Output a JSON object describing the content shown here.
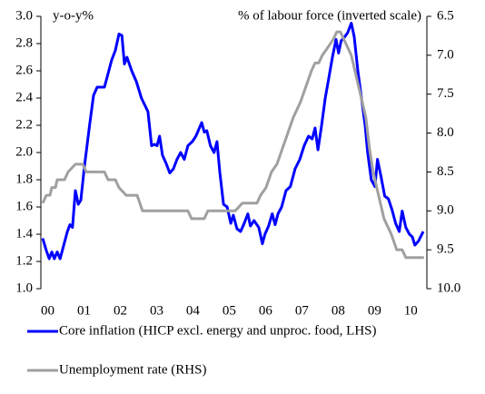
{
  "chart_data": {
    "type": "line",
    "y_axis_label": "y-o-y%",
    "y2_axis_label": "% of labour force (inverted scale)",
    "xlim": [
      2000,
      2010.58
    ],
    "xticks": [
      {
        "value": 2000,
        "label": "00"
      },
      {
        "value": 2001,
        "label": "01"
      },
      {
        "value": 2002,
        "label": "02"
      },
      {
        "value": 2003,
        "label": "03"
      },
      {
        "value": 2004,
        "label": "04"
      },
      {
        "value": 2005,
        "label": "05"
      },
      {
        "value": 2006,
        "label": "06"
      },
      {
        "value": 2007,
        "label": "07"
      },
      {
        "value": 2008,
        "label": "08"
      },
      {
        "value": 2009,
        "label": "09"
      },
      {
        "value": 2010,
        "label": "10"
      }
    ],
    "ylim": [
      1.0,
      3.0
    ],
    "yticks": [
      {
        "value": 1,
        "label": "1.0"
      },
      1.2,
      1.4,
      1.6,
      1.8,
      {
        "value": 2,
        "label": "2.0"
      },
      2.2,
      2.4,
      2.6,
      2.8,
      {
        "value": 3,
        "label": "3.0"
      }
    ],
    "y2lim": [
      6.5,
      10.0
    ],
    "y2_inverted": true,
    "y2ticks": [
      6.5,
      {
        "value": 7,
        "label": "7.0"
      },
      7.5,
      {
        "value": 8,
        "label": "8.0"
      },
      8.5,
      {
        "value": 9,
        "label": "9.0"
      },
      9.5,
      {
        "value": 10,
        "label": "10.0"
      }
    ],
    "series": [
      {
        "name": "Core inflation (HICP excl. energy and unproc. food, LHS)",
        "color": "#0000ff",
        "x": [
          2000.0,
          2000.1,
          2000.18,
          2000.25,
          2000.32,
          2000.4,
          2000.48,
          2000.58,
          2000.68,
          2000.75,
          2000.82,
          2000.9,
          2000.98,
          2001.05,
          2001.15,
          2001.3,
          2001.4,
          2001.5,
          2001.7,
          2001.82,
          2001.9,
          2002.0,
          2002.1,
          2002.18,
          2002.25,
          2002.32,
          2002.45,
          2002.58,
          2002.72,
          2002.9,
          2003.0,
          2003.08,
          2003.15,
          2003.22,
          2003.3,
          2003.4,
          2003.5,
          2003.6,
          2003.7,
          2003.8,
          2003.9,
          2004.0,
          2004.12,
          2004.22,
          2004.38,
          2004.45,
          2004.52,
          2004.62,
          2004.72,
          2004.8,
          2004.88,
          2004.98,
          2005.08,
          2005.18,
          2005.25,
          2005.35,
          2005.45,
          2005.55,
          2005.65,
          2005.72,
          2005.82,
          2005.95,
          2006.05,
          2006.12,
          2006.22,
          2006.32,
          2006.4,
          2006.48,
          2006.58,
          2006.7,
          2006.82,
          2006.95,
          2007.08,
          2007.2,
          2007.32,
          2007.42,
          2007.5,
          2007.58,
          2007.68,
          2007.78,
          2007.88,
          2007.98,
          2008.08,
          2008.15,
          2008.22,
          2008.32,
          2008.4,
          2008.5,
          2008.58,
          2008.68,
          2008.78,
          2008.88,
          2008.95,
          2009.05,
          2009.15,
          2009.22,
          2009.32,
          2009.42,
          2009.52,
          2009.62,
          2009.72,
          2009.82,
          2009.9,
          2010.0,
          2010.1,
          2010.18,
          2010.25,
          2010.35,
          2010.48
        ],
        "values": [
          1.37,
          1.28,
          1.22,
          1.27,
          1.22,
          1.27,
          1.22,
          1.32,
          1.42,
          1.47,
          1.45,
          1.72,
          1.62,
          1.65,
          1.9,
          2.22,
          2.42,
          2.48,
          2.48,
          2.6,
          2.68,
          2.75,
          2.87,
          2.86,
          2.65,
          2.7,
          2.6,
          2.52,
          2.4,
          2.3,
          2.05,
          2.06,
          2.05,
          2.12,
          1.98,
          1.92,
          1.85,
          1.88,
          1.95,
          2.0,
          1.95,
          2.05,
          2.08,
          2.12,
          2.22,
          2.15,
          2.16,
          2.05,
          2.0,
          2.08,
          1.85,
          1.62,
          1.6,
          1.48,
          1.54,
          1.44,
          1.42,
          1.48,
          1.55,
          1.46,
          1.5,
          1.45,
          1.33,
          1.4,
          1.46,
          1.55,
          1.47,
          1.55,
          1.6,
          1.72,
          1.75,
          1.88,
          1.95,
          2.05,
          2.12,
          2.1,
          2.18,
          2.02,
          2.2,
          2.4,
          2.55,
          2.7,
          2.83,
          2.73,
          2.82,
          2.85,
          2.88,
          2.95,
          2.85,
          2.6,
          2.4,
          2.2,
          2.0,
          1.8,
          1.75,
          1.95,
          1.82,
          1.68,
          1.66,
          1.58,
          1.48,
          1.42,
          1.57,
          1.45,
          1.4,
          1.38,
          1.32,
          1.35,
          1.42
        ]
      },
      {
        "name": "Unemployment rate (RHS)",
        "color": "#a0a0a0",
        "axis": "y2",
        "x": [
          2000.0,
          2000.1,
          2000.2,
          2000.25,
          2000.35,
          2000.4,
          2000.6,
          2000.7,
          2000.9,
          2001.1,
          2001.2,
          2001.7,
          2001.8,
          2002.0,
          2002.1,
          2002.3,
          2002.6,
          2002.75,
          2004.0,
          2004.1,
          2004.45,
          2004.55,
          2005.3,
          2005.5,
          2005.9,
          2006.0,
          2006.15,
          2006.3,
          2006.45,
          2006.6,
          2006.75,
          2006.9,
          2007.1,
          2007.25,
          2007.4,
          2007.5,
          2007.6,
          2007.7,
          2007.85,
          2008.0,
          2008.1,
          2008.2,
          2008.3,
          2008.4,
          2008.5,
          2008.6,
          2008.75,
          2008.9,
          2009.0,
          2009.1,
          2009.2,
          2009.3,
          2009.4,
          2009.5,
          2009.6,
          2009.75,
          2009.9,
          2010.0,
          2010.15,
          2010.5
        ],
        "values": [
          8.9,
          8.8,
          8.8,
          8.7,
          8.7,
          8.6,
          8.6,
          8.5,
          8.4,
          8.4,
          8.5,
          8.5,
          8.6,
          8.6,
          8.7,
          8.8,
          8.8,
          9.0,
          9.0,
          9.1,
          9.1,
          9.0,
          9.0,
          8.9,
          8.9,
          8.8,
          8.7,
          8.5,
          8.4,
          8.2,
          8.0,
          7.8,
          7.6,
          7.4,
          7.2,
          7.1,
          7.1,
          7.0,
          6.9,
          6.8,
          6.7,
          6.7,
          6.8,
          6.9,
          7.0,
          7.2,
          7.5,
          7.8,
          8.2,
          8.5,
          8.7,
          8.9,
          9.1,
          9.2,
          9.3,
          9.5,
          9.5,
          9.6,
          9.6,
          9.6
        ]
      }
    ]
  }
}
